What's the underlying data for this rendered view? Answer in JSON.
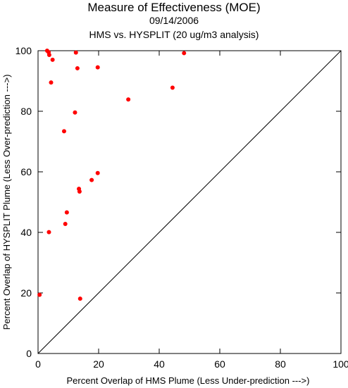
{
  "chart_data": {
    "type": "scatter",
    "title": "Measure of Effectiveness (MOE)",
    "subtitle_date": "09/14/2006",
    "subtitle_analysis": "HMS vs. HYSPLIT  (20 ug/m3 analysis)",
    "xlabel": "Percent Overlap of HMS Plume (Less Under-prediction --->)",
    "ylabel": "Percent Overlap of HYSPLIT Plume (Less Over-prediction --->)",
    "xlim": [
      0,
      100
    ],
    "ylim": [
      0,
      100
    ],
    "xticks": [
      "0",
      "20",
      "40",
      "60",
      "80",
      "100"
    ],
    "yticks": [
      "0",
      "20",
      "40",
      "60",
      "80",
      "100"
    ],
    "grid": false,
    "reference_line": "diagonal y = x",
    "point_color": "#ff0000",
    "points": [
      {
        "x": 3.0,
        "y": 100.0
      },
      {
        "x": 3.5,
        "y": 99.5
      },
      {
        "x": 3.7,
        "y": 98.6
      },
      {
        "x": 12.5,
        "y": 99.4
      },
      {
        "x": 48.2,
        "y": 99.2
      },
      {
        "x": 4.8,
        "y": 97.0
      },
      {
        "x": 13.0,
        "y": 94.2
      },
      {
        "x": 19.7,
        "y": 94.5
      },
      {
        "x": 4.3,
        "y": 89.5
      },
      {
        "x": 44.4,
        "y": 87.8
      },
      {
        "x": 29.8,
        "y": 83.9
      },
      {
        "x": 12.2,
        "y": 79.6
      },
      {
        "x": 8.6,
        "y": 73.4
      },
      {
        "x": 19.7,
        "y": 59.6
      },
      {
        "x": 17.7,
        "y": 57.3
      },
      {
        "x": 13.5,
        "y": 54.4
      },
      {
        "x": 13.7,
        "y": 53.5
      },
      {
        "x": 9.5,
        "y": 46.6
      },
      {
        "x": 9.0,
        "y": 42.8
      },
      {
        "x": 3.6,
        "y": 40.1
      },
      {
        "x": 0.5,
        "y": 19.4
      },
      {
        "x": 13.9,
        "y": 18.1
      }
    ]
  }
}
